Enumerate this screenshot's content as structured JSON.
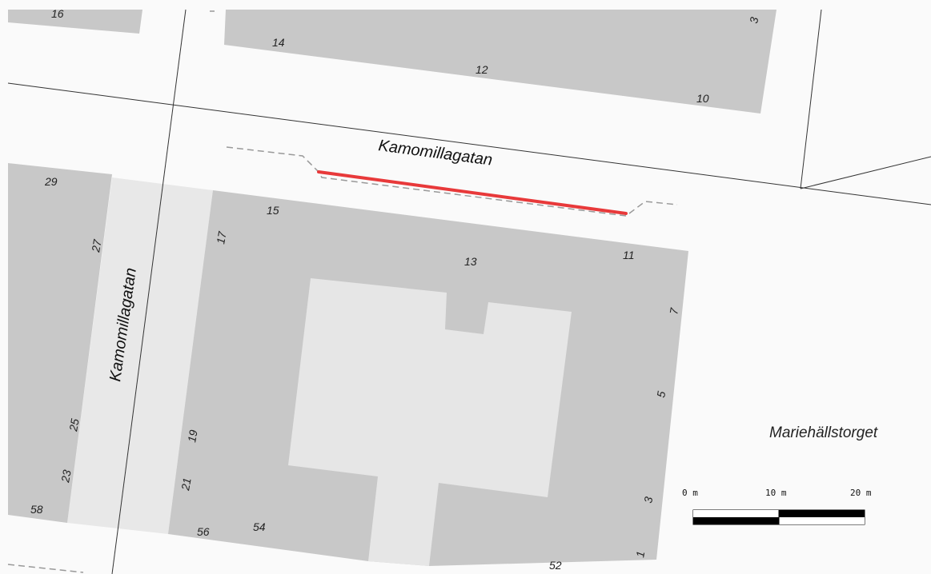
{
  "map": {
    "streets": {
      "horizontal": "Kamomillagatan",
      "vertical": "Kamomillagatan"
    },
    "place_label": "Mariehällstorget",
    "house_numbers": {
      "top_block": [
        "16",
        "14",
        "12",
        "10",
        "3"
      ],
      "left_block": [
        "29",
        "27",
        "25",
        "23",
        "58"
      ],
      "main_block": [
        "15",
        "17",
        "13",
        "11",
        "7",
        "5",
        "3",
        "1",
        "19",
        "21",
        "56",
        "54",
        "52"
      ]
    },
    "highlight": {
      "color": "#e8393a",
      "description": ""
    },
    "scale_bar": {
      "labels": [
        "0 m",
        "10 m",
        "20 m"
      ]
    },
    "colors": {
      "building": "#c8c8c8",
      "courtyard": "#e6e6e6",
      "background": "#fafafa",
      "parcel_line": "#333333",
      "dashed_line": "#999999"
    }
  }
}
